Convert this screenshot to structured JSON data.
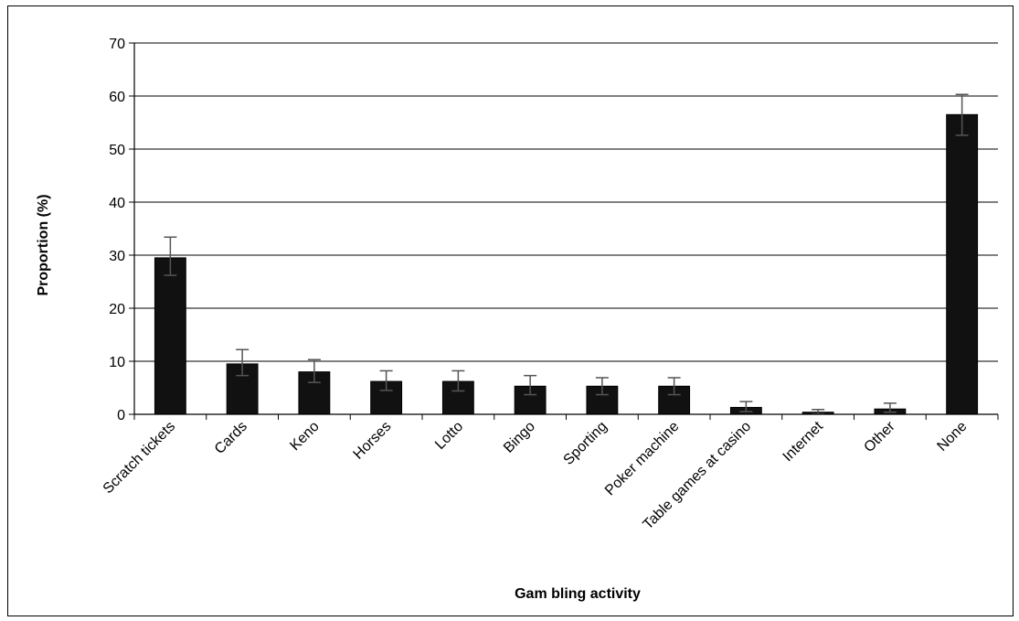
{
  "chart_data": {
    "type": "bar",
    "title": "",
    "xlabel": "Gam bling activity",
    "ylabel": "Proportion (%)",
    "ylim": [
      0,
      70
    ],
    "yticks": [
      0,
      10,
      20,
      30,
      40,
      50,
      60,
      70
    ],
    "grid": true,
    "legend": "none",
    "bar_color": "#111111",
    "categories": [
      "Scratch tickets",
      "Cards",
      "Keno",
      "Horses",
      "Lotto",
      "Bingo",
      "Sporting",
      "Poker machine",
      "Table games at casino",
      "Internet",
      "Other",
      "None"
    ],
    "series": [
      {
        "values": [
          29.5,
          9.5,
          8.0,
          6.2,
          6.2,
          5.3,
          5.3,
          5.3,
          1.3,
          0.4,
          1.0,
          56.5
        ],
        "error_low": [
          26.2,
          7.3,
          6.0,
          4.5,
          4.4,
          3.7,
          3.7,
          3.7,
          0.5,
          0.1,
          0.4,
          52.6
        ],
        "error_high": [
          33.4,
          12.2,
          10.3,
          8.2,
          8.2,
          7.3,
          6.9,
          6.9,
          2.4,
          0.9,
          2.1,
          60.3
        ]
      }
    ]
  }
}
